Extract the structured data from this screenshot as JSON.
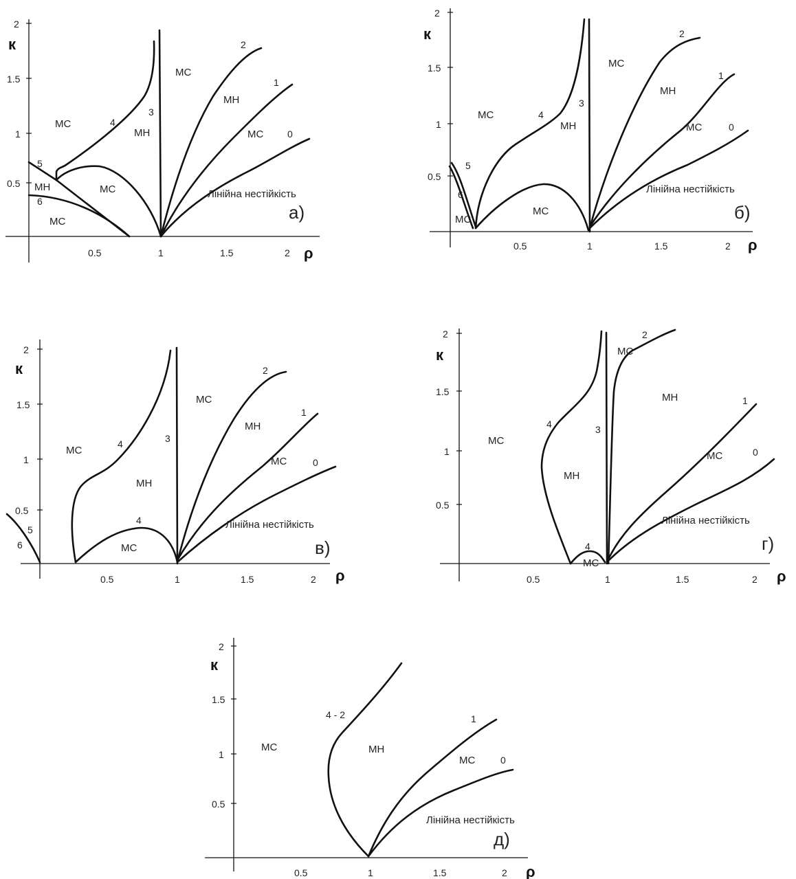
{
  "panels": {
    "a": {
      "panel_label": "а)",
      "y_axis": "к",
      "x_axis": "ρ",
      "y_ticks": [
        "2",
        "1.5",
        "1",
        "0.5"
      ],
      "x_ticks": [
        "0.5",
        "1",
        "1.5",
        "2"
      ],
      "regions": [
        "МС",
        "МС",
        "МН",
        "МС",
        "МН",
        "МС",
        "МС",
        "МН",
        "Лінійна нестійкість"
      ],
      "curve_labels": [
        "2",
        "1",
        "0",
        "3",
        "4",
        "5",
        "6"
      ]
    },
    "b": {
      "panel_label": "б)",
      "y_axis": "к",
      "x_axis": "ρ",
      "y_ticks": [
        "2",
        "1.5",
        "1",
        "0.5"
      ],
      "x_ticks": [
        "0.5",
        "1",
        "1.5",
        "2"
      ],
      "regions": [
        "МС",
        "МС",
        "МН",
        "МН",
        "МС",
        "МС",
        "МС",
        "Лінійна нестійкість"
      ],
      "curve_labels": [
        "2",
        "1",
        "0",
        "3",
        "4",
        "5",
        "6"
      ]
    },
    "c": {
      "panel_label": "в)",
      "y_axis": "к",
      "x_axis": "ρ",
      "y_ticks": [
        "2",
        "1.5",
        "1",
        "0.5"
      ],
      "x_ticks": [
        "0.5",
        "1",
        "1.5",
        "2"
      ],
      "regions": [
        "МС",
        "МС",
        "МН",
        "МН",
        "МС",
        "МС",
        "Лінійна нестійкість"
      ],
      "curve_labels": [
        "2",
        "1",
        "0",
        "3",
        "4",
        "4",
        "5",
        "6"
      ]
    },
    "d": {
      "panel_label": "г)",
      "y_axis": "к",
      "x_axis": "ρ",
      "y_ticks": [
        "2",
        "1.5",
        "1",
        "0.5"
      ],
      "x_ticks": [
        "0.5",
        "1",
        "1.5",
        "2"
      ],
      "regions": [
        "МС",
        "МН",
        "МС",
        "МН",
        "МС",
        "МС",
        "Лінійна нестійкість"
      ],
      "curve_labels": [
        "2",
        "1",
        "0",
        "3",
        "4",
        "4"
      ]
    },
    "e": {
      "panel_label": "д)",
      "y_axis": "к",
      "x_axis": "ρ",
      "y_ticks": [
        "2",
        "1.5",
        "1",
        "0.5"
      ],
      "x_ticks": [
        "0.5",
        "1",
        "1.5",
        "2"
      ],
      "regions": [
        "МС",
        "МН",
        "МС",
        "Лінійна нестійкість"
      ],
      "curve_labels": [
        "4 - 2",
        "1",
        "0"
      ]
    }
  }
}
